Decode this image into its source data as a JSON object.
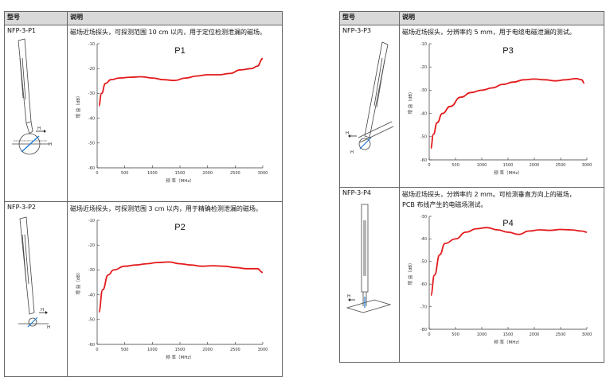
{
  "header": {
    "col1": "型号",
    "col2": "说明"
  },
  "probes": [
    {
      "model": "NFP-3-P1",
      "desc_lines": [
        "磁场近场探头，可探测范围 10 cm 以内，用于定位检测泄漏的磁场。"
      ],
      "chart": {
        "title": "P1",
        "ylabel": "增 益（dB）",
        "xlabel": "频 率（MHz）",
        "yticks": [
          "-10",
          "-20",
          "-30",
          "-40",
          "-50",
          "-60"
        ],
        "xticks": [
          "0",
          "500",
          "1000",
          "1500",
          "2000",
          "2500",
          "3000"
        ]
      }
    },
    {
      "model": "NFP-3-P2",
      "desc_lines": [
        "磁场近场探头，可探测范围 3 cm 以内，用于精确检测泄漏的磁场。"
      ],
      "chart": {
        "title": "P2",
        "ylabel": "增 益（dB）",
        "xlabel": "频 率（MHz）",
        "yticks": [
          "-10",
          "-20",
          "-30",
          "-40",
          "-50",
          "-60"
        ],
        "xticks": [
          "0",
          "500",
          "1000",
          "1500",
          "2000",
          "2500",
          "3000"
        ]
      }
    },
    {
      "model": "NFP-3-P3",
      "desc_lines": [
        "磁场近场探头，分辨率约 5 mm，用于电缆电磁泄漏的测试。"
      ],
      "chart": {
        "title": "P3",
        "ylabel": "增 益（dB）",
        "xlabel": "频 率（MHz）",
        "yticks": [
          "-10",
          "-20",
          "-30",
          "-40",
          "-50",
          "-60"
        ],
        "xticks": [
          "0",
          "500",
          "1000",
          "1500",
          "2000",
          "2500",
          "3000"
        ]
      }
    },
    {
      "model": "NFP-3-P4",
      "desc_lines": [
        "磁场近场探头，分辨率约 2 mm。可检测垂直方向上的磁场，",
        "PCB 布线产生的电磁场测试。"
      ],
      "chart": {
        "title": "P4",
        "ylabel": "增 益（dB）",
        "xlabel": "频 率（MHz）",
        "yticks": [
          "-30",
          "-40",
          "-50",
          "-60",
          "-70",
          "-80"
        ],
        "xticks": [
          "0",
          "500",
          "1000",
          "1500",
          "2000",
          "2500",
          "3000"
        ]
      }
    }
  ],
  "h_label": "H",
  "chart_data": [
    {
      "type": "line",
      "title": "P1",
      "xlabel": "频 率（MHz）",
      "ylabel": "增 益（dB）",
      "xlim": [
        0,
        3000
      ],
      "ylim": [
        -60,
        -10
      ],
      "series": [
        {
          "color": "#e31a1c",
          "x": [
            30,
            80,
            150,
            250,
            400,
            600,
            800,
            1000,
            1200,
            1400,
            1600,
            1800,
            2000,
            2200,
            2400,
            2600,
            2800,
            2900,
            3000
          ],
          "y": [
            -35,
            -30,
            -26,
            -24.5,
            -23.8,
            -23.5,
            -23.3,
            -23.8,
            -24.5,
            -24.8,
            -23.8,
            -23,
            -22.5,
            -22.5,
            -22,
            -20.5,
            -20,
            -19,
            -16
          ]
        }
      ]
    },
    {
      "type": "line",
      "title": "P2",
      "xlabel": "频 率（MHz）",
      "ylabel": "增 益（dB）",
      "xlim": [
        0,
        3000
      ],
      "ylim": [
        -60,
        -10
      ],
      "series": [
        {
          "color": "#e31a1c",
          "x": [
            30,
            100,
            200,
            300,
            500,
            700,
            900,
            1100,
            1300,
            1500,
            1700,
            1900,
            2100,
            2300,
            2500,
            2700,
            2900,
            3000
          ],
          "y": [
            -47,
            -38,
            -32,
            -30,
            -28.5,
            -28,
            -27.5,
            -27,
            -26.8,
            -27.5,
            -28,
            -28.5,
            -28.3,
            -28.5,
            -29,
            -29.5,
            -29.5,
            -31
          ]
        }
      ]
    },
    {
      "type": "line",
      "title": "P3",
      "xlabel": "频 率（MHz）",
      "ylabel": "增 益（dB）",
      "xlim": [
        0,
        3000
      ],
      "ylim": [
        -60,
        -10
      ],
      "series": [
        {
          "color": "#e31a1c",
          "x": [
            30,
            80,
            150,
            250,
            400,
            600,
            800,
            1000,
            1200,
            1400,
            1600,
            1800,
            2000,
            2200,
            2400,
            2600,
            2800,
            2900,
            2950
          ],
          "y": [
            -55,
            -49,
            -44,
            -40,
            -37,
            -33,
            -31,
            -30,
            -29,
            -27.5,
            -26.5,
            -25.5,
            -25.2,
            -25.5,
            -26,
            -25.5,
            -25,
            -25.5,
            -27
          ]
        }
      ]
    },
    {
      "type": "line",
      "title": "P4",
      "xlabel": "频 率（MHz）",
      "ylabel": "增 益（dB）",
      "xlim": [
        0,
        3000
      ],
      "ylim": [
        -80,
        -30
      ],
      "series": [
        {
          "color": "#e31a1c",
          "x": [
            30,
            100,
            200,
            300,
            500,
            700,
            900,
            1100,
            1300,
            1500,
            1700,
            1900,
            2100,
            2300,
            2500,
            2700,
            2900,
            3000
          ],
          "y": [
            -65,
            -56,
            -47,
            -42,
            -40,
            -37,
            -35.5,
            -35,
            -36,
            -37,
            -38,
            -36.5,
            -36,
            -36.2,
            -35.8,
            -36,
            -36.5,
            -37
          ]
        }
      ]
    }
  ]
}
